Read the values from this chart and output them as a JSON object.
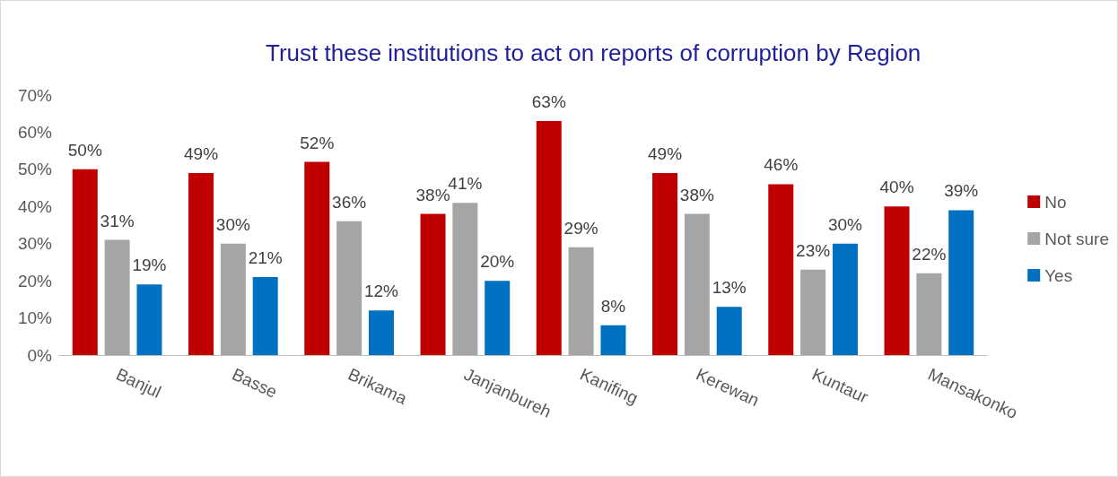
{
  "chart_data": {
    "type": "bar",
    "title": "Trust these institutions to act on reports of corruption by Region",
    "categories": [
      "Banjul",
      "Basse",
      "Brikama",
      "Janjanbureh",
      "Kanifing",
      "Kerewan",
      "Kuntaur",
      "Mansakonko"
    ],
    "series": [
      {
        "name": "No",
        "color": "#c00000",
        "values": [
          50,
          49,
          52,
          38,
          63,
          49,
          46,
          40
        ],
        "value_labels": [
          "50%",
          "49%",
          "52%",
          "38%",
          "63%",
          "49%",
          "46%",
          "40%"
        ]
      },
      {
        "name": "Not sure",
        "color": "#a5a5a5",
        "values": [
          31,
          30,
          36,
          41,
          29,
          38,
          23,
          22
        ],
        "value_labels": [
          "31%",
          "30%",
          "36%",
          "41%",
          "29%",
          "38%",
          "23%",
          "22%"
        ]
      },
      {
        "name": "Yes",
        "color": "#0070c0",
        "values": [
          19,
          21,
          12,
          20,
          8,
          13,
          30,
          39
        ],
        "value_labels": [
          "19%",
          "21%",
          "12%",
          "20%",
          "8%",
          "13%",
          "30%",
          "39%"
        ]
      }
    ],
    "ylim": [
      0,
      70
    ],
    "yticks": [
      {
        "value": 0,
        "label": "0%"
      },
      {
        "value": 10,
        "label": "10%"
      },
      {
        "value": 20,
        "label": "20%"
      },
      {
        "value": 30,
        "label": "30%"
      },
      {
        "value": 40,
        "label": "40%"
      },
      {
        "value": 50,
        "label": "50%"
      },
      {
        "value": 60,
        "label": "60%"
      },
      {
        "value": 70,
        "label": "70%"
      }
    ],
    "grid": false,
    "legend": "right"
  }
}
